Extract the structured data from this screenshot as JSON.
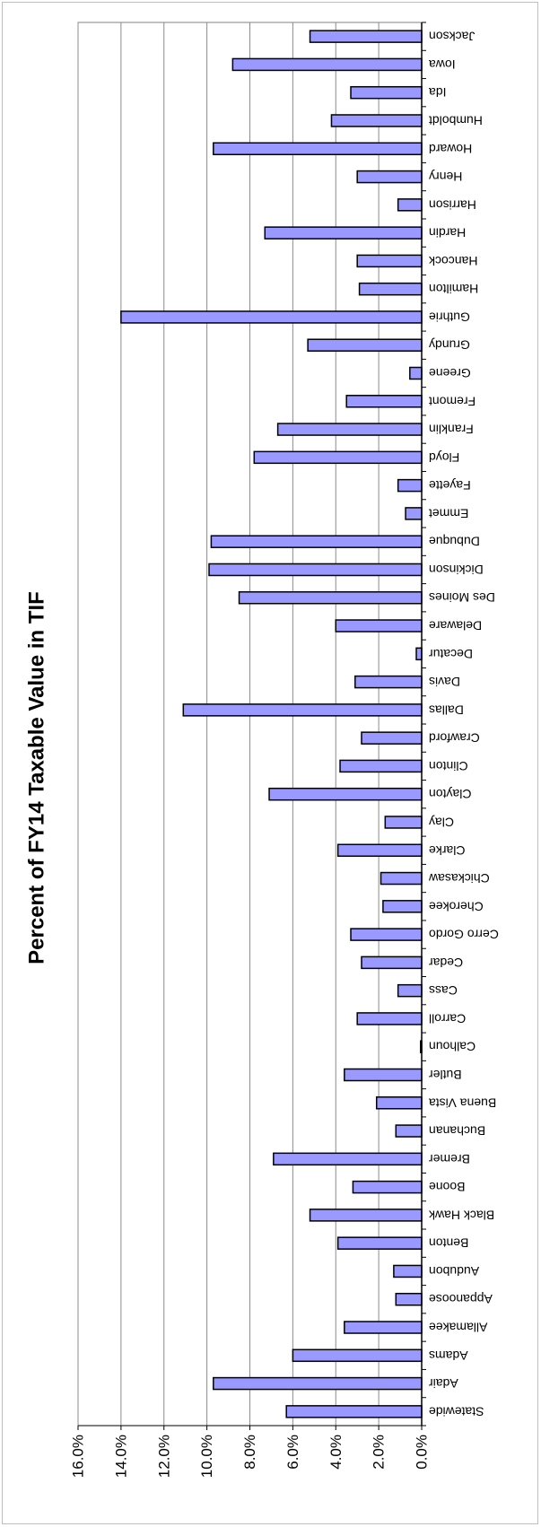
{
  "chart_data": {
    "type": "bar",
    "orientation": "horizontal",
    "title": "Percent of FY14 Taxable Value in TIF",
    "xlabel": "",
    "ylabel": "",
    "xlim": [
      0,
      16
    ],
    "ticks": [
      "0.0%",
      "2.0%",
      "4.0%",
      "6.0%",
      "8.0%",
      "10.0%",
      "12.0%",
      "14.0%",
      "16.0%"
    ],
    "tick_values": [
      0,
      2,
      4,
      6,
      8,
      10,
      12,
      14,
      16
    ],
    "grid": true,
    "legend": "none",
    "bar_color": "#9999ff",
    "bar_edge_color": "#000000",
    "categories": [
      "Statewide",
      "Adair",
      "Adams",
      "Allamakee",
      "Appanoose",
      "Audubon",
      "Benton",
      "Black Hawk",
      "Boone",
      "Bremer",
      "Buchanan",
      "Buena Vista",
      "Butler",
      "Calhoun",
      "Carroll",
      "Cass",
      "Cedar",
      "Cerro Gordo",
      "Cherokee",
      "Chickasaw",
      "Clarke",
      "Clay",
      "Clayton",
      "Clinton",
      "Crawford",
      "Dallas",
      "Davis",
      "Decatur",
      "Delaware",
      "Des Moines",
      "Dickinson",
      "Dubuque",
      "Emmet",
      "Fayette",
      "Floyd",
      "Franklin",
      "Fremont",
      "Greene",
      "Grundy",
      "Guthrie",
      "Hamilton",
      "Hancock",
      "Hardin",
      "Harrison",
      "Henry",
      "Howard",
      "Humboldt",
      "Ida",
      "Iowa",
      "Jackson"
    ],
    "values": [
      6.3,
      9.7,
      6.0,
      3.6,
      1.2,
      1.3,
      3.9,
      5.2,
      3.2,
      6.9,
      1.2,
      2.1,
      3.6,
      0.05,
      3.0,
      1.1,
      2.8,
      3.3,
      1.8,
      1.9,
      3.9,
      1.7,
      7.1,
      3.8,
      2.8,
      11.1,
      3.1,
      0.25,
      4.0,
      8.5,
      9.9,
      9.8,
      0.75,
      1.1,
      7.8,
      6.7,
      3.5,
      0.55,
      5.3,
      14.0,
      2.9,
      3.0,
      7.3,
      1.1,
      3.0,
      9.7,
      4.2,
      3.3,
      8.8,
      5.2
    ]
  }
}
